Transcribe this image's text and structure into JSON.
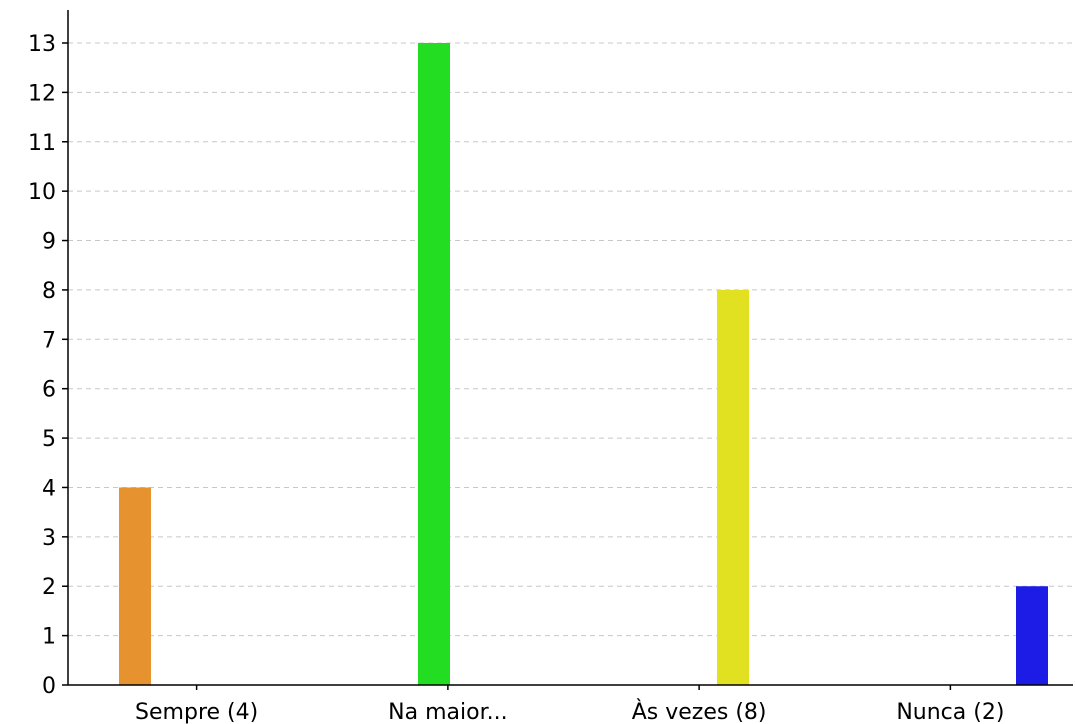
{
  "chart_data": {
    "type": "bar",
    "title": "",
    "xlabel": "",
    "ylabel": "",
    "categories": [
      "Sempre (4)",
      "Na maior...",
      "Às vezes (8)",
      "Nunca (2)"
    ],
    "values": [
      4,
      13,
      8,
      2
    ],
    "colors": [
      "#e6922e",
      "#22dd22",
      "#e1e122",
      "#1c1ce6"
    ],
    "ylim": [
      0,
      13
    ],
    "yticks": [
      0,
      1,
      2,
      3,
      4,
      5,
      6,
      7,
      8,
      9,
      10,
      11,
      12,
      13
    ],
    "grid": true,
    "legend": "none"
  }
}
